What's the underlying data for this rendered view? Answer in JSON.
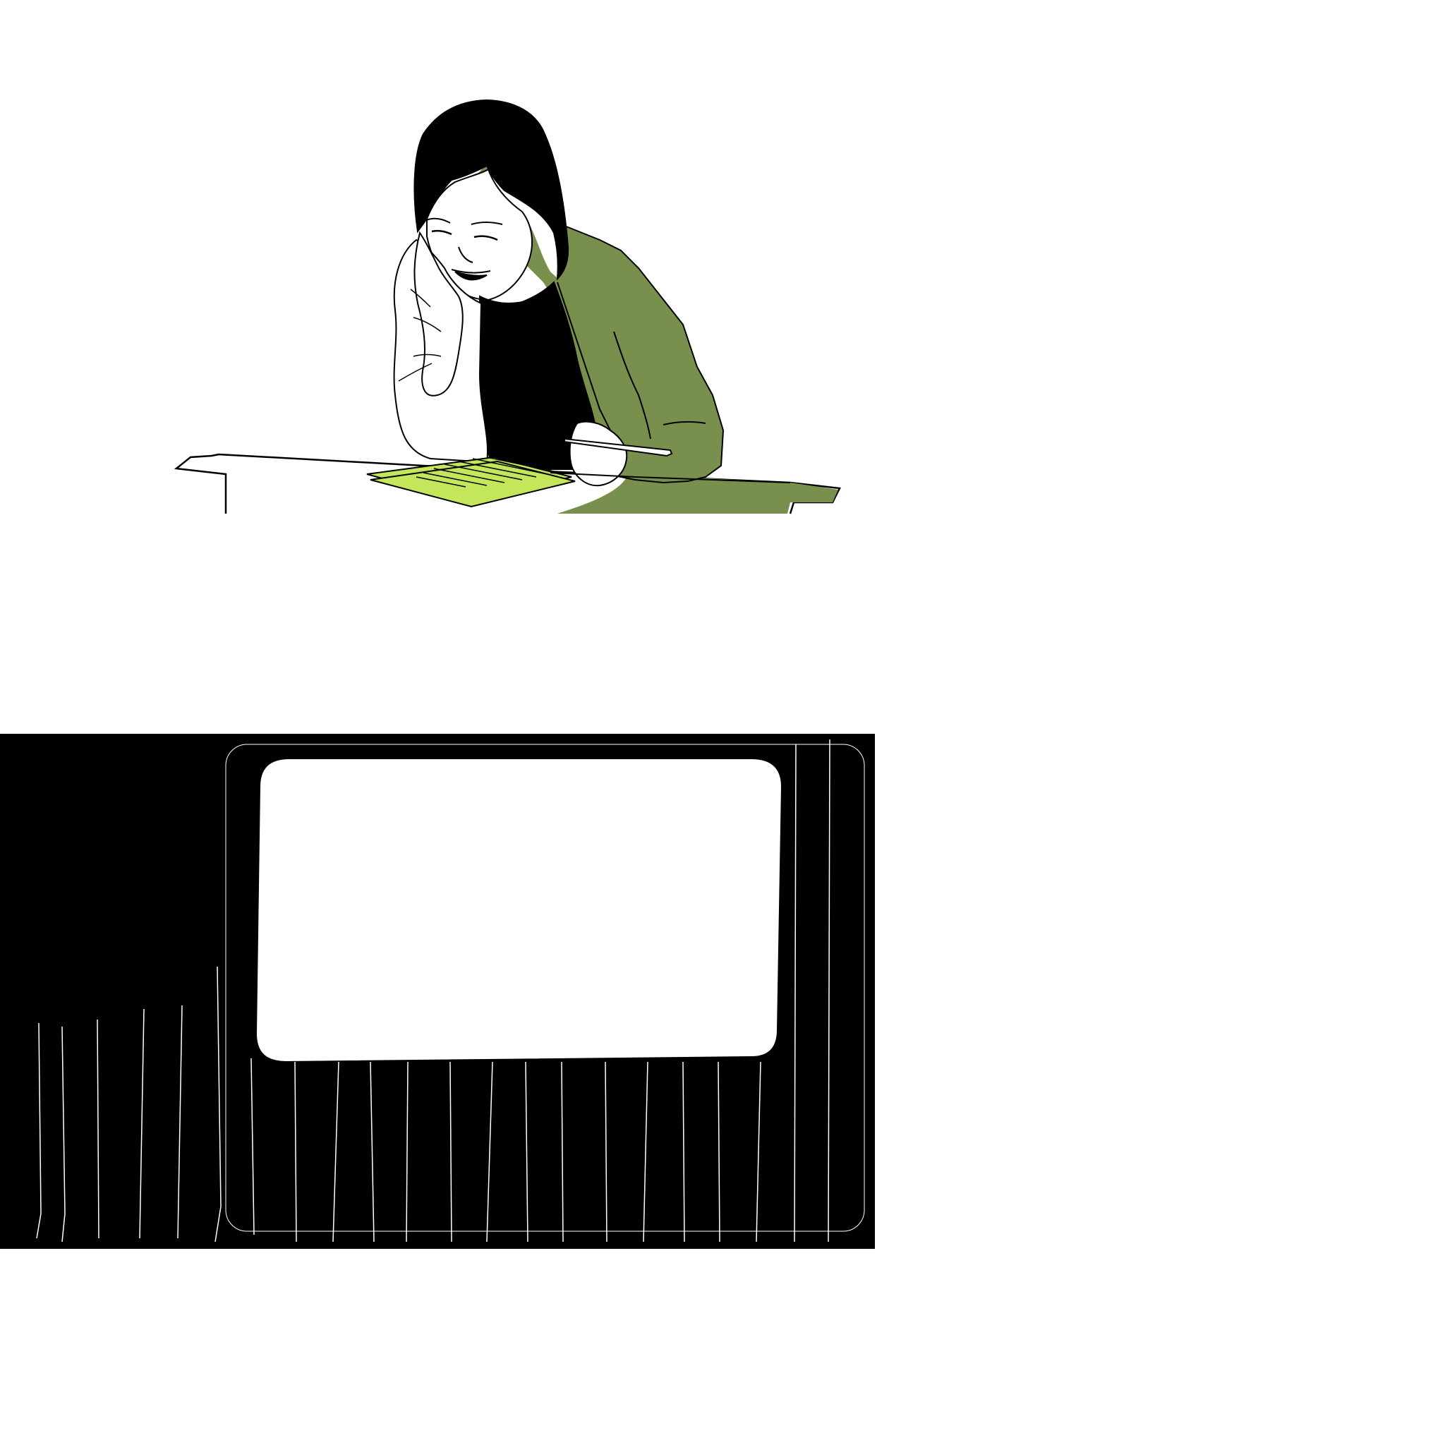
{
  "illustration": {
    "subject": "person-writing-at-desk",
    "colors": {
      "background": "#ffffff",
      "ink": "#000000",
      "cardigan_green": "#788f4e",
      "paper_green": "#c4e65a",
      "skin": "#ffffff"
    }
  },
  "backdrop_panel": {
    "colors": {
      "fill": "#000000",
      "screen": "#ffffff",
      "stripe": "#ffffff"
    }
  }
}
